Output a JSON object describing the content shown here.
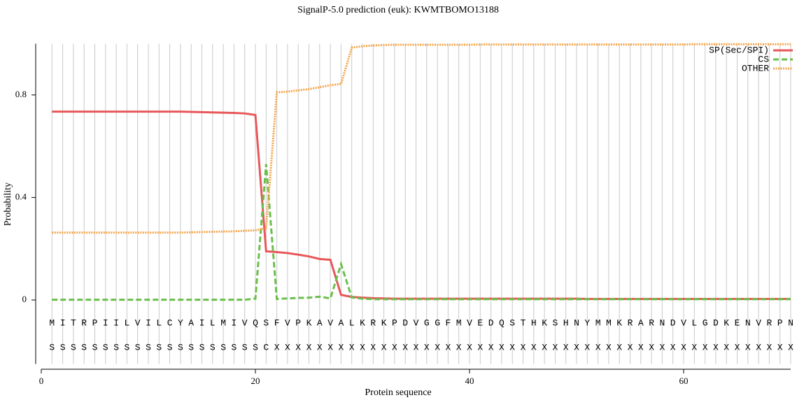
{
  "chart_data": {
    "type": "line",
    "title": "SignalP-5.0 prediction (euk):  KWMTBOMO13188",
    "xlabel": "Protein sequence",
    "ylabel": "Probability",
    "x": [
      1,
      2,
      3,
      4,
      5,
      6,
      7,
      8,
      9,
      10,
      11,
      12,
      13,
      14,
      15,
      16,
      17,
      18,
      19,
      20,
      21,
      22,
      23,
      24,
      25,
      26,
      27,
      28,
      29,
      30,
      31,
      32,
      33,
      34,
      35,
      36,
      37,
      38,
      39,
      40,
      41,
      42,
      43,
      44,
      45,
      46,
      47,
      48,
      49,
      50,
      51,
      52,
      53,
      54,
      55,
      56,
      57,
      58,
      59,
      60,
      61,
      62,
      63,
      64,
      65,
      66,
      67,
      68,
      69,
      70
    ],
    "sequence": [
      "M",
      "I",
      "T",
      "R",
      "P",
      "I",
      "I",
      "L",
      "V",
      "I",
      "L",
      "C",
      "Y",
      "A",
      "I",
      "L",
      "M",
      "I",
      "V",
      "Q",
      "S",
      "F",
      "V",
      "P",
      "K",
      "A",
      "V",
      "A",
      "L",
      "K",
      "R",
      "K",
      "P",
      "D",
      "V",
      "G",
      "G",
      "F",
      "M",
      "V",
      "E",
      "D",
      "Q",
      "S",
      "T",
      "H",
      "K",
      "S",
      "H",
      "N",
      "Y",
      "M",
      "M",
      "K",
      "R",
      "A",
      "R",
      "N",
      "D",
      "V",
      "L",
      "G",
      "D",
      "K",
      "E",
      "N",
      "V",
      "R",
      "P",
      "N"
    ],
    "annotation": [
      "S",
      "S",
      "S",
      "S",
      "S",
      "S",
      "S",
      "S",
      "S",
      "S",
      "S",
      "S",
      "S",
      "S",
      "S",
      "S",
      "S",
      "S",
      "S",
      "S",
      "C",
      "X",
      "X",
      "X",
      "X",
      "X",
      "X",
      "X",
      "X",
      "X",
      "X",
      "X",
      "X",
      "X",
      "X",
      "X",
      "X",
      "X",
      "X",
      "X",
      "X",
      "X",
      "X",
      "X",
      "X",
      "X",
      "X",
      "X",
      "X",
      "X",
      "X",
      "X",
      "X",
      "X",
      "X",
      "X",
      "X",
      "X",
      "X",
      "X",
      "X",
      "X",
      "X",
      "X",
      "X",
      "X",
      "X",
      "X",
      "X",
      "X"
    ],
    "series": [
      {
        "name": "SP(Sec/SPI)",
        "color": "#e8575a",
        "dash": "solid",
        "values": [
          0.735,
          0.735,
          0.735,
          0.735,
          0.735,
          0.735,
          0.735,
          0.735,
          0.735,
          0.735,
          0.735,
          0.735,
          0.735,
          0.734,
          0.733,
          0.732,
          0.731,
          0.73,
          0.728,
          0.722,
          0.19,
          0.187,
          0.183,
          0.177,
          0.17,
          0.16,
          0.157,
          0.02,
          0.012,
          0.009,
          0.007,
          0.006,
          0.005,
          0.005,
          0.005,
          0.005,
          0.005,
          0.005,
          0.005,
          0.005,
          0.005,
          0.005,
          0.005,
          0.005,
          0.005,
          0.005,
          0.005,
          0.005,
          0.005,
          0.005,
          0.004,
          0.004,
          0.004,
          0.004,
          0.004,
          0.004,
          0.004,
          0.004,
          0.004,
          0.004,
          0.004,
          0.004,
          0.004,
          0.004,
          0.004,
          0.004,
          0.004,
          0.004,
          0.004,
          0.004
        ]
      },
      {
        "name": "CS",
        "color": "#6abf4b",
        "dash": "dashed",
        "values": [
          0.001,
          0.001,
          0.001,
          0.001,
          0.001,
          0.001,
          0.001,
          0.001,
          0.001,
          0.001,
          0.001,
          0.001,
          0.001,
          0.001,
          0.001,
          0.001,
          0.001,
          0.001,
          0.001,
          0.005,
          0.53,
          0.004,
          0.006,
          0.008,
          0.009,
          0.013,
          0.006,
          0.14,
          0.01,
          0.005,
          0.003,
          0.003,
          0.003,
          0.003,
          0.003,
          0.003,
          0.003,
          0.003,
          0.003,
          0.003,
          0.003,
          0.003,
          0.003,
          0.003,
          0.003,
          0.003,
          0.003,
          0.003,
          0.003,
          0.003,
          0.003,
          0.003,
          0.003,
          0.003,
          0.003,
          0.003,
          0.003,
          0.003,
          0.003,
          0.003,
          0.003,
          0.003,
          0.003,
          0.003,
          0.003,
          0.003,
          0.003,
          0.003,
          0.003,
          0.003
        ]
      },
      {
        "name": "OTHER",
        "color": "#f5a54a",
        "dash": "dotted",
        "values": [
          0.263,
          0.263,
          0.263,
          0.263,
          0.263,
          0.263,
          0.263,
          0.263,
          0.263,
          0.263,
          0.263,
          0.263,
          0.263,
          0.264,
          0.265,
          0.266,
          0.267,
          0.268,
          0.27,
          0.272,
          0.28,
          0.81,
          0.813,
          0.818,
          0.823,
          0.83,
          0.838,
          0.843,
          0.985,
          0.99,
          0.993,
          0.995,
          0.996,
          0.996,
          0.996,
          0.996,
          0.996,
          0.996,
          0.996,
          0.996,
          0.997,
          0.997,
          0.997,
          0.997,
          0.997,
          0.997,
          0.997,
          0.997,
          0.997,
          0.997,
          0.997,
          0.997,
          0.997,
          0.997,
          0.997,
          0.997,
          0.997,
          0.997,
          0.997,
          0.997,
          0.998,
          0.998,
          0.998,
          0.998,
          0.998,
          0.998,
          0.998,
          0.998,
          0.998,
          0.998
        ]
      }
    ],
    "xlim": [
      0,
      70
    ],
    "xticks": [
      0,
      20,
      40,
      60
    ],
    "ylim": [
      -0.25,
      1.0
    ],
    "yticks": [
      0,
      0.4,
      0.8
    ],
    "grid": true,
    "legend": "top-right"
  }
}
